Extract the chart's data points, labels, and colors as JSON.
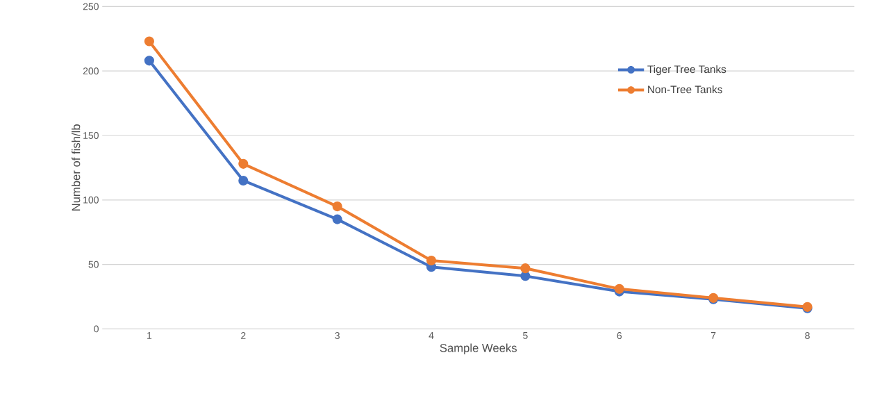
{
  "chart_data": {
    "type": "line",
    "xlabel": "Sample Weeks",
    "ylabel": "Number of fish/lb",
    "categories": [
      "1",
      "2",
      "3",
      "4",
      "5",
      "6",
      "7",
      "8"
    ],
    "series": [
      {
        "name": "Tiger Tree Tanks",
        "color": "#4472c4",
        "values": [
          208,
          115,
          85,
          48,
          41,
          29,
          23,
          16
        ]
      },
      {
        "name": "Non-Tree Tanks",
        "color": "#ed7d31",
        "values": [
          223,
          128,
          95,
          53,
          47,
          31,
          24,
          17
        ]
      }
    ],
    "ylim": [
      0,
      250
    ],
    "yticks": [
      0,
      50,
      100,
      150,
      200,
      250
    ],
    "grid": "y",
    "legend": "top right",
    "marker": "circle",
    "line_style": "solid"
  }
}
